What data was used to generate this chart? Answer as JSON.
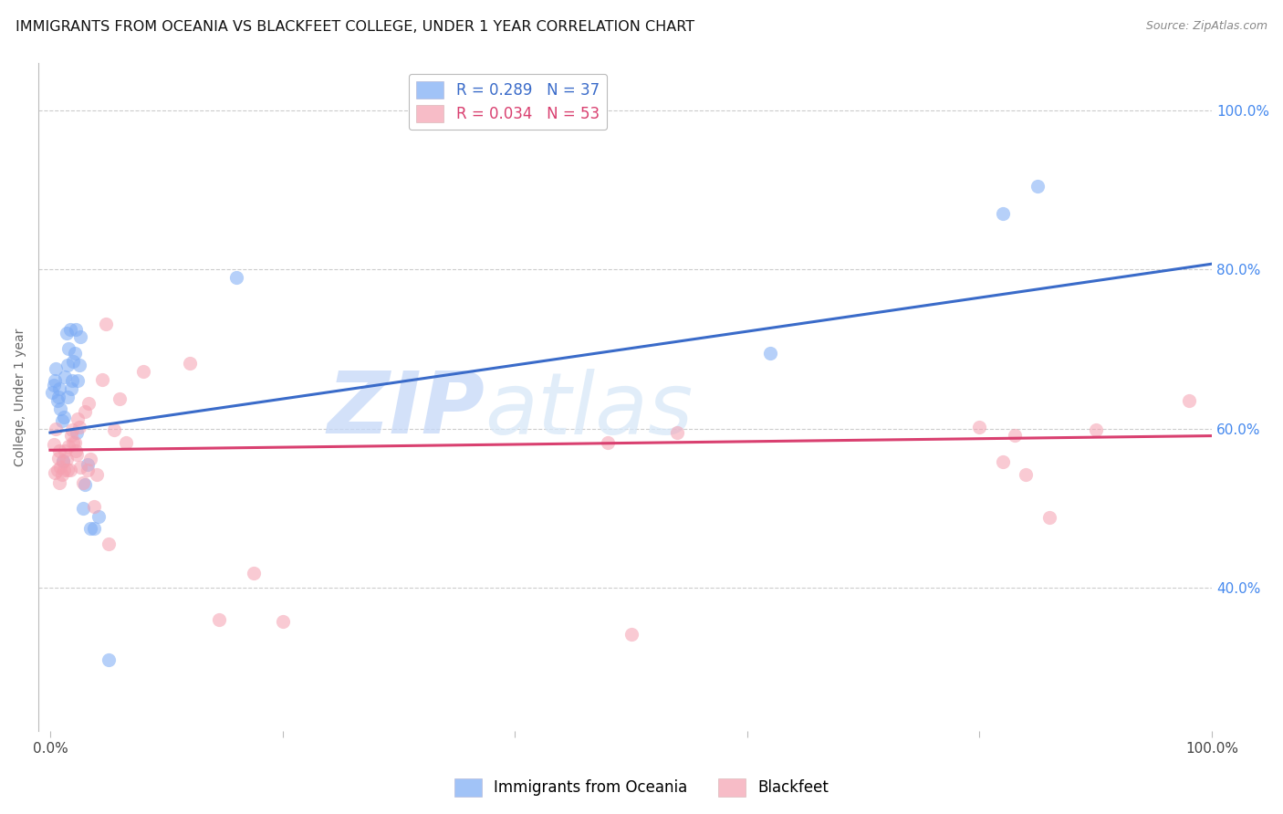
{
  "title": "IMMIGRANTS FROM OCEANIA VS BLACKFEET COLLEGE, UNDER 1 YEAR CORRELATION CHART",
  "source": "Source: ZipAtlas.com",
  "ylabel": "College, Under 1 year",
  "watermark_text": "ZIP",
  "watermark_text2": "atlas",
  "legend_entry1": "R = 0.289   N = 37",
  "legend_entry2": "R = 0.034   N = 53",
  "legend_label1": "Immigrants from Oceania",
  "legend_label2": "Blackfeet",
  "ytick_labels": [
    "40.0%",
    "60.0%",
    "80.0%",
    "100.0%"
  ],
  "ytick_values": [
    0.4,
    0.6,
    0.8,
    1.0
  ],
  "xlim": [
    -0.01,
    1.0
  ],
  "ylim": [
    0.22,
    1.06
  ],
  "blue_scatter_x": [
    0.002,
    0.003,
    0.004,
    0.005,
    0.006,
    0.007,
    0.008,
    0.009,
    0.01,
    0.011,
    0.012,
    0.013,
    0.014,
    0.015,
    0.015,
    0.016,
    0.017,
    0.018,
    0.019,
    0.02,
    0.021,
    0.022,
    0.023,
    0.024,
    0.025,
    0.026,
    0.028,
    0.03,
    0.032,
    0.035,
    0.038,
    0.042,
    0.05,
    0.16,
    0.62,
    0.82,
    0.85
  ],
  "blue_scatter_y": [
    0.645,
    0.655,
    0.66,
    0.675,
    0.635,
    0.64,
    0.65,
    0.625,
    0.61,
    0.56,
    0.615,
    0.665,
    0.72,
    0.68,
    0.64,
    0.7,
    0.725,
    0.65,
    0.66,
    0.685,
    0.695,
    0.725,
    0.595,
    0.66,
    0.68,
    0.715,
    0.5,
    0.53,
    0.555,
    0.475,
    0.475,
    0.49,
    0.31,
    0.79,
    0.695,
    0.87,
    0.905
  ],
  "pink_scatter_x": [
    0.003,
    0.004,
    0.005,
    0.006,
    0.007,
    0.008,
    0.008,
    0.009,
    0.01,
    0.011,
    0.012,
    0.013,
    0.014,
    0.015,
    0.016,
    0.017,
    0.018,
    0.019,
    0.02,
    0.021,
    0.022,
    0.023,
    0.024,
    0.025,
    0.026,
    0.028,
    0.03,
    0.032,
    0.033,
    0.035,
    0.038,
    0.04,
    0.045,
    0.048,
    0.05,
    0.055,
    0.06,
    0.065,
    0.08,
    0.12,
    0.145,
    0.175,
    0.2,
    0.48,
    0.5,
    0.54,
    0.8,
    0.82,
    0.83,
    0.84,
    0.86,
    0.9,
    0.98
  ],
  "pink_scatter_y": [
    0.58,
    0.545,
    0.6,
    0.548,
    0.563,
    0.572,
    0.532,
    0.552,
    0.542,
    0.558,
    0.548,
    0.572,
    0.562,
    0.548,
    0.578,
    0.548,
    0.592,
    0.598,
    0.582,
    0.582,
    0.572,
    0.568,
    0.612,
    0.602,
    0.552,
    0.532,
    0.622,
    0.548,
    0.632,
    0.562,
    0.502,
    0.542,
    0.662,
    0.732,
    0.455,
    0.598,
    0.638,
    0.582,
    0.672,
    0.682,
    0.36,
    0.418,
    0.358,
    0.582,
    0.342,
    0.595,
    0.602,
    0.558,
    0.592,
    0.542,
    0.488,
    0.598,
    0.635
  ],
  "blue_line_x": [
    0.0,
    1.0
  ],
  "blue_line_y": [
    0.595,
    0.807
  ],
  "pink_line_x": [
    0.0,
    1.0
  ],
  "pink_line_y": [
    0.573,
    0.591
  ],
  "blue_scatter_color": "#7aaaf5",
  "pink_scatter_color": "#f5a0b0",
  "blue_line_color": "#3a6bc9",
  "pink_line_color": "#d94070",
  "legend_blue_color": "#3a6bc9",
  "legend_pink_color": "#d94070",
  "scatter_alpha": 0.55,
  "scatter_size": 120,
  "background_color": "#ffffff",
  "grid_color": "#cccccc",
  "title_fontsize": 11.5,
  "axis_label_fontsize": 10,
  "tick_fontsize": 11,
  "right_tick_color": "#4488ee"
}
